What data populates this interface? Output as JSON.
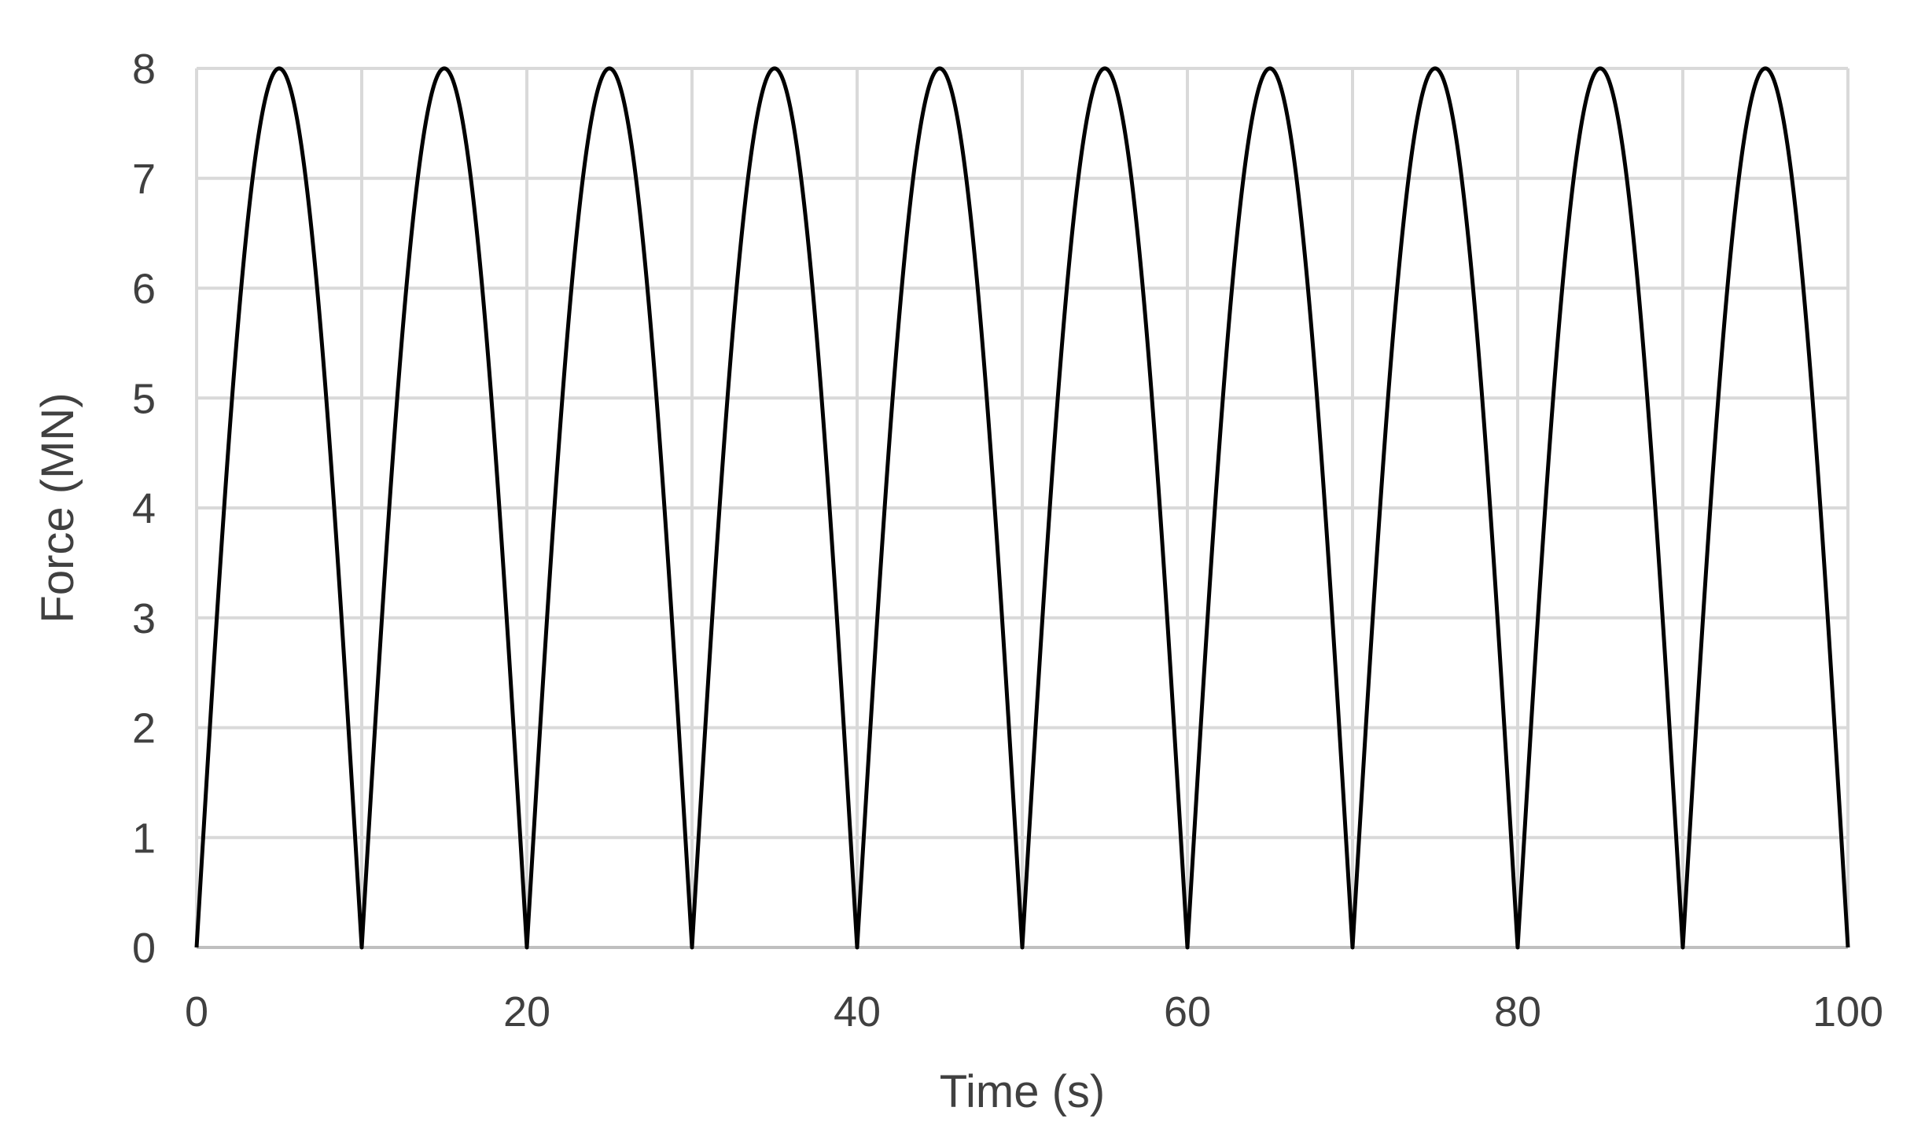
{
  "chart_data": {
    "type": "line",
    "title": "",
    "xlabel": "Time (s)",
    "ylabel": "Force (MN)",
    "xlim": [
      0,
      100
    ],
    "ylim": [
      0,
      8
    ],
    "x_ticks": [
      0,
      20,
      40,
      60,
      80,
      100
    ],
    "y_ticks": [
      0,
      1,
      2,
      3,
      4,
      5,
      6,
      7,
      8
    ],
    "x_gridlines": [
      0,
      10,
      20,
      30,
      40,
      50,
      60,
      70,
      80,
      90,
      100
    ],
    "grid": true,
    "legend": "none",
    "series_color": "#000000",
    "grid_color": "#d9d9d9",
    "series": [
      {
        "function": "8*|sin(pi*t/10)|",
        "amplitude": 8,
        "period": 10,
        "x": [
          0,
          2.5,
          5,
          7.5,
          10,
          12.5,
          15,
          17.5,
          20,
          22.5,
          25,
          27.5,
          30,
          32.5,
          35,
          37.5,
          40,
          42.5,
          45,
          47.5,
          50,
          52.5,
          55,
          57.5,
          60,
          62.5,
          65,
          67.5,
          70,
          72.5,
          75,
          77.5,
          80,
          82.5,
          85,
          87.5,
          90,
          92.5,
          95,
          97.5,
          100
        ],
        "y": [
          0,
          5.66,
          8,
          5.66,
          0,
          5.66,
          8,
          5.66,
          0,
          5.66,
          8,
          5.66,
          0,
          5.66,
          8,
          5.66,
          0,
          5.66,
          8,
          5.66,
          0,
          5.66,
          8,
          5.66,
          0,
          5.66,
          8,
          5.66,
          0,
          5.66,
          8,
          5.66,
          0,
          5.66,
          8,
          5.66,
          0,
          5.66,
          8,
          5.66,
          0
        ]
      }
    ]
  }
}
